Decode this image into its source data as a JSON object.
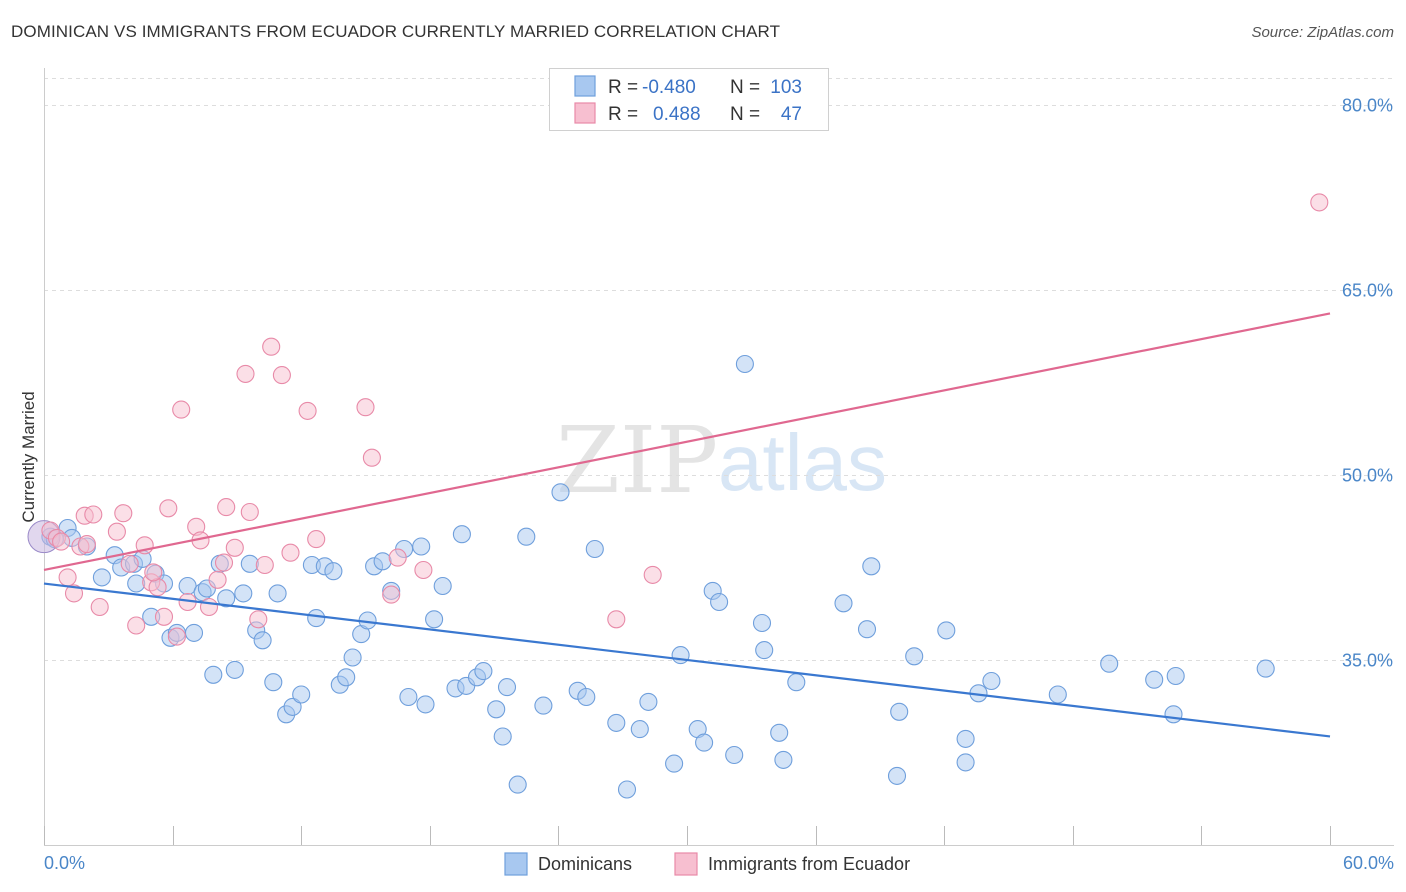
{
  "header": {
    "title": "DOMINICAN VS IMMIGRANTS FROM ECUADOR CURRENTLY MARRIED CORRELATION CHART",
    "source": "Source: ZipAtlas.com"
  },
  "legend": {
    "row1": {
      "r_label": "R =",
      "r_value": "-0.480",
      "n_label": "N =",
      "n_value": "103"
    },
    "row2": {
      "r_label": "R =",
      "r_value": "0.488",
      "n_label": "N =",
      "n_value": "47"
    }
  },
  "bottom_legend": {
    "series1": "Dominicans",
    "series2": "Immigrants from Ecuador"
  },
  "watermark": {
    "zip": "ZIP",
    "atlas": "atlas"
  },
  "colors": {
    "blue_fill": "#a8c8f0",
    "blue_stroke": "#6f9fdc",
    "blue_line": "#3a78d0",
    "pink_fill": "#f7bfd0",
    "pink_stroke": "#e88aa8",
    "pink_line": "#e06890",
    "tick_text": "#4a86c8",
    "grid": "#dddddd"
  },
  "chart_data": {
    "type": "scatter",
    "title": "DOMINICAN VS IMMIGRANTS FROM ECUADOR CURRENTLY MARRIED CORRELATION CHART",
    "xlabel": "",
    "ylabel": "Currently Married",
    "xlim": [
      0,
      60
    ],
    "ylim": [
      20,
      83
    ],
    "x_tick_labels": [
      "0.0%",
      "60.0%"
    ],
    "y_ticks": [
      35,
      50,
      65,
      80
    ],
    "y_tick_labels": [
      "35.0%",
      "50.0%",
      "65.0%",
      "80.0%"
    ],
    "grid": true,
    "legend_position": "top-center",
    "series": [
      {
        "name": "Dominicans",
        "color": "#6f9fdc",
        "r": -0.48,
        "n": 103,
        "trend": {
          "x": [
            0,
            60
          ],
          "y": [
            41.2,
            28.8
          ]
        },
        "points": [
          [
            0.3,
            45.0
          ],
          [
            0.5,
            44.8
          ],
          [
            1.1,
            45.7
          ],
          [
            1.3,
            44.9
          ],
          [
            2.0,
            44.2
          ],
          [
            2.7,
            41.7
          ],
          [
            3.3,
            43.5
          ],
          [
            3.6,
            42.5
          ],
          [
            4.2,
            42.8
          ],
          [
            4.3,
            41.2
          ],
          [
            4.6,
            43.2
          ],
          [
            5.0,
            38.5
          ],
          [
            5.2,
            42.0
          ],
          [
            5.6,
            41.2
          ],
          [
            5.9,
            36.8
          ],
          [
            6.2,
            37.2
          ],
          [
            6.7,
            41.0
          ],
          [
            7.0,
            37.2
          ],
          [
            7.4,
            40.5
          ],
          [
            7.6,
            40.8
          ],
          [
            7.9,
            33.8
          ],
          [
            8.2,
            42.8
          ],
          [
            8.5,
            40.0
          ],
          [
            8.9,
            34.2
          ],
          [
            9.3,
            40.4
          ],
          [
            9.6,
            42.8
          ],
          [
            9.9,
            37.4
          ],
          [
            10.2,
            36.6
          ],
          [
            10.7,
            33.2
          ],
          [
            10.9,
            40.4
          ],
          [
            11.3,
            30.6
          ],
          [
            11.6,
            31.2
          ],
          [
            12.0,
            32.2
          ],
          [
            12.5,
            42.7
          ],
          [
            12.7,
            38.4
          ],
          [
            13.1,
            42.6
          ],
          [
            13.5,
            42.2
          ],
          [
            13.8,
            33.0
          ],
          [
            14.1,
            33.6
          ],
          [
            14.4,
            35.2
          ],
          [
            14.8,
            37.1
          ],
          [
            15.1,
            38.2
          ],
          [
            15.4,
            42.6
          ],
          [
            15.8,
            43.0
          ],
          [
            16.2,
            40.6
          ],
          [
            16.8,
            44.0
          ],
          [
            17.0,
            32.0
          ],
          [
            17.6,
            44.2
          ],
          [
            17.8,
            31.4
          ],
          [
            18.2,
            38.3
          ],
          [
            18.6,
            41.0
          ],
          [
            19.2,
            32.7
          ],
          [
            19.5,
            45.2
          ],
          [
            19.7,
            32.9
          ],
          [
            20.2,
            33.6
          ],
          [
            20.5,
            34.1
          ],
          [
            21.1,
            31.0
          ],
          [
            21.4,
            28.8
          ],
          [
            21.6,
            32.8
          ],
          [
            22.1,
            24.9
          ],
          [
            22.5,
            45.0
          ],
          [
            23.3,
            31.3
          ],
          [
            24.1,
            48.6
          ],
          [
            24.9,
            32.5
          ],
          [
            25.3,
            32.0
          ],
          [
            25.7,
            44.0
          ],
          [
            26.7,
            29.9
          ],
          [
            27.2,
            24.5
          ],
          [
            27.8,
            29.4
          ],
          [
            28.2,
            31.6
          ],
          [
            29.4,
            26.6
          ],
          [
            29.7,
            35.4
          ],
          [
            30.5,
            29.4
          ],
          [
            30.8,
            28.3
          ],
          [
            31.2,
            40.6
          ],
          [
            31.5,
            39.7
          ],
          [
            32.2,
            27.3
          ],
          [
            32.7,
            59.0
          ],
          [
            33.5,
            38.0
          ],
          [
            33.6,
            35.8
          ],
          [
            34.3,
            29.1
          ],
          [
            34.5,
            26.9
          ],
          [
            35.1,
            33.2
          ],
          [
            37.3,
            39.6
          ],
          [
            38.4,
            37.5
          ],
          [
            38.6,
            42.6
          ],
          [
            39.8,
            25.6
          ],
          [
            39.9,
            30.8
          ],
          [
            40.6,
            35.3
          ],
          [
            42.1,
            37.4
          ],
          [
            43.0,
            28.6
          ],
          [
            43.0,
            26.7
          ],
          [
            43.6,
            32.3
          ],
          [
            44.2,
            33.3
          ],
          [
            47.3,
            32.2
          ],
          [
            49.7,
            34.7
          ],
          [
            51.8,
            33.4
          ],
          [
            52.7,
            30.6
          ],
          [
            52.8,
            33.7
          ],
          [
            57.0,
            34.3
          ]
        ]
      },
      {
        "name": "Immigrants from Ecuador",
        "color": "#e88aa8",
        "r": 0.488,
        "n": 47,
        "trend": {
          "x": [
            0,
            60
          ],
          "y": [
            42.3,
            63.1
          ]
        },
        "points": [
          [
            0.3,
            45.5
          ],
          [
            0.6,
            44.9
          ],
          [
            1.1,
            41.7
          ],
          [
            1.4,
            40.4
          ],
          [
            1.7,
            44.2
          ],
          [
            1.9,
            46.7
          ],
          [
            2.3,
            46.8
          ],
          [
            2.6,
            39.3
          ],
          [
            3.4,
            45.4
          ],
          [
            3.7,
            46.9
          ],
          [
            4.0,
            42.8
          ],
          [
            4.3,
            37.8
          ],
          [
            4.7,
            44.3
          ],
          [
            5.0,
            41.3
          ],
          [
            5.3,
            40.9
          ],
          [
            5.6,
            38.5
          ],
          [
            5.8,
            47.3
          ],
          [
            6.2,
            36.9
          ],
          [
            6.4,
            55.3
          ],
          [
            6.7,
            39.7
          ],
          [
            7.1,
            45.8
          ],
          [
            7.3,
            44.7
          ],
          [
            7.7,
            39.3
          ],
          [
            8.1,
            41.5
          ],
          [
            8.4,
            42.9
          ],
          [
            8.5,
            47.4
          ],
          [
            8.9,
            44.1
          ],
          [
            9.4,
            58.2
          ],
          [
            9.6,
            47.0
          ],
          [
            10.0,
            38.3
          ],
          [
            10.3,
            42.7
          ],
          [
            10.6,
            60.4
          ],
          [
            11.1,
            58.1
          ],
          [
            11.5,
            43.7
          ],
          [
            12.3,
            55.2
          ],
          [
            12.7,
            44.8
          ],
          [
            15.0,
            55.5
          ],
          [
            15.3,
            51.4
          ],
          [
            16.2,
            40.3
          ],
          [
            16.5,
            43.3
          ],
          [
            17.7,
            42.3
          ],
          [
            26.7,
            38.3
          ],
          [
            28.4,
            41.9
          ],
          [
            59.5,
            72.1
          ],
          [
            0.8,
            44.6
          ],
          [
            2.0,
            44.4
          ],
          [
            5.1,
            42.1
          ]
        ]
      }
    ]
  }
}
